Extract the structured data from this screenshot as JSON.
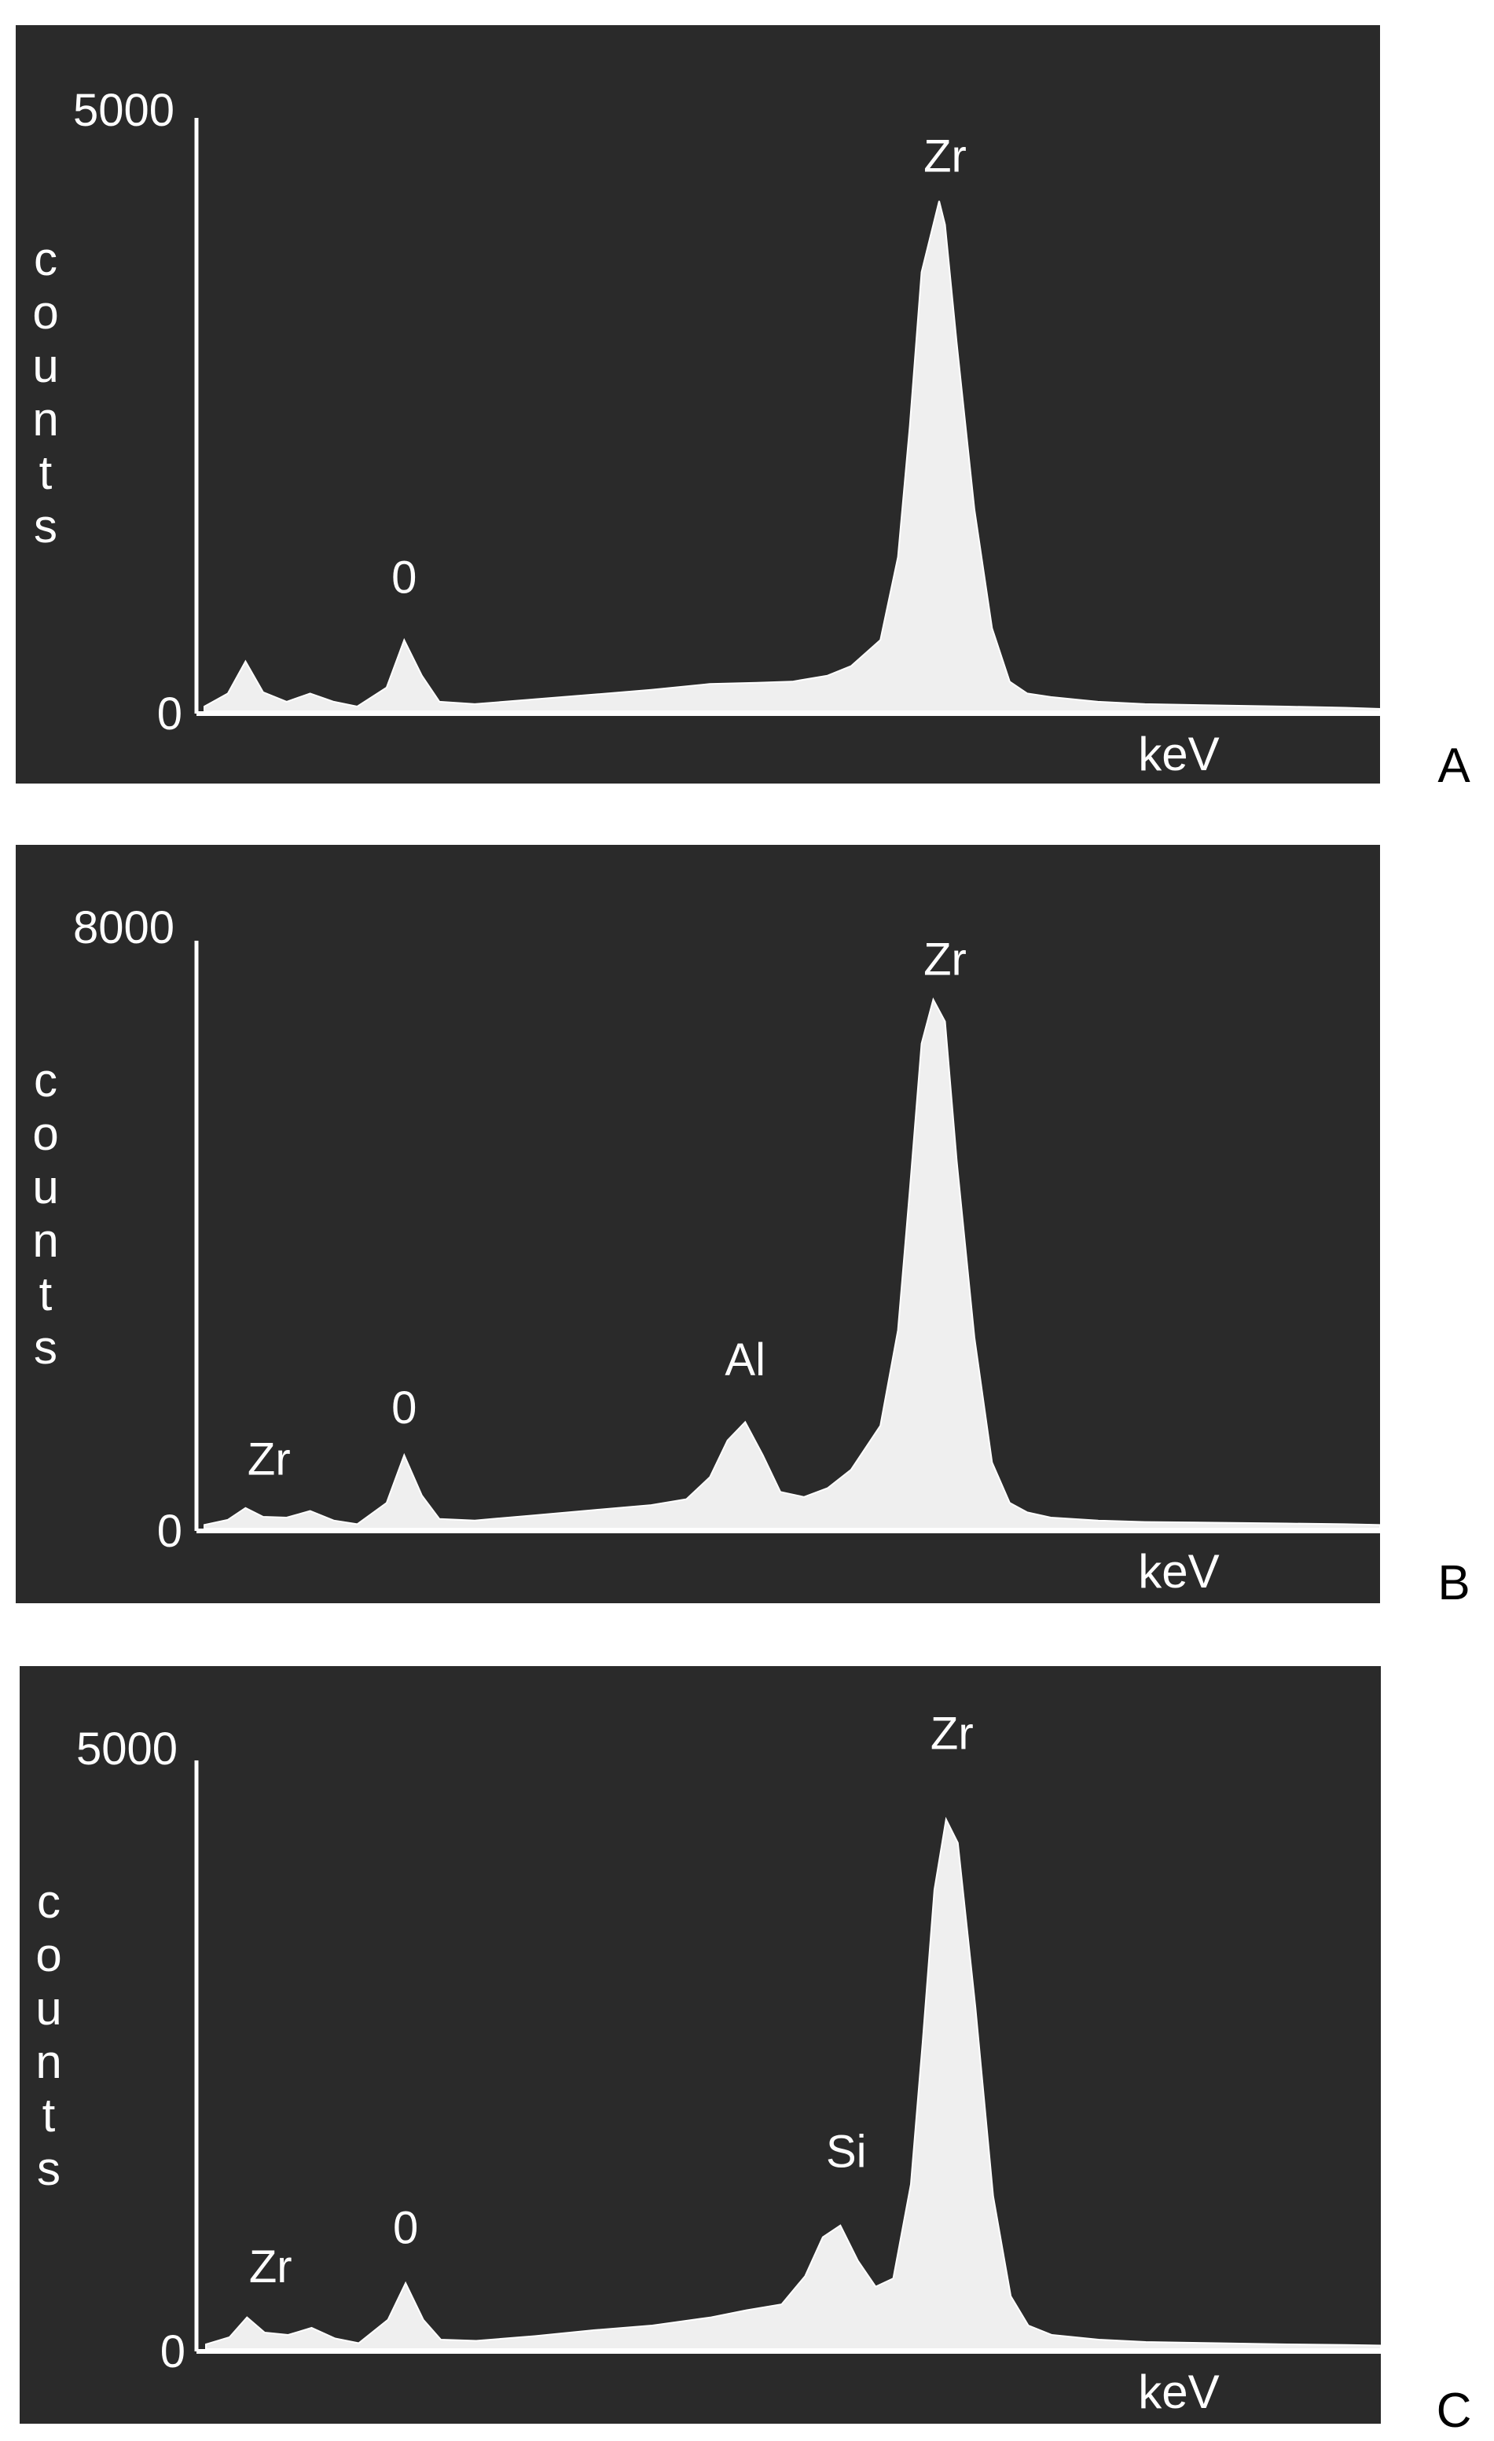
{
  "chart_data": [
    {
      "type": "area",
      "panel": "A",
      "ylabel": "counts",
      "xlabel": "keV",
      "yticks": [
        "5000",
        "0"
      ],
      "ylim": [
        0,
        5000
      ],
      "xlim": [
        0,
        1
      ],
      "peak_labels": [
        {
          "text": "0",
          "x": 0.17,
          "y": 850
        },
        {
          "text": "Zr",
          "x": 0.63,
          "y": 4400
        }
      ],
      "x": [
        0.0,
        0.02,
        0.035,
        0.05,
        0.07,
        0.09,
        0.11,
        0.13,
        0.155,
        0.17,
        0.185,
        0.2,
        0.23,
        0.28,
        0.33,
        0.38,
        0.43,
        0.47,
        0.5,
        0.53,
        0.55,
        0.575,
        0.59,
        0.6,
        0.61,
        0.625,
        0.63,
        0.64,
        0.655,
        0.67,
        0.685,
        0.7,
        0.72,
        0.76,
        0.8,
        0.86,
        0.92,
        0.97,
        1.0
      ],
      "values": [
        40,
        150,
        420,
        160,
        80,
        150,
        80,
        40,
        200,
        600,
        300,
        80,
        60,
        100,
        140,
        180,
        230,
        240,
        250,
        300,
        380,
        600,
        1300,
        2400,
        3700,
        4300,
        4100,
        3100,
        1700,
        700,
        250,
        150,
        120,
        80,
        60,
        50,
        40,
        30,
        20
      ]
    },
    {
      "type": "area",
      "panel": "B",
      "ylabel": "counts",
      "xlabel": "keV",
      "yticks": [
        "8000",
        "0"
      ],
      "ylim": [
        0,
        8000
      ],
      "xlim": [
        0,
        1
      ],
      "peak_labels": [
        {
          "text": "Zr",
          "x": 0.055,
          "y": 500
        },
        {
          "text": "0",
          "x": 0.17,
          "y": 1200
        },
        {
          "text": "Al",
          "x": 0.46,
          "y": 1850
        },
        {
          "text": "Zr",
          "x": 0.63,
          "y": 7300
        }
      ],
      "x": [
        0.0,
        0.02,
        0.035,
        0.05,
        0.07,
        0.09,
        0.11,
        0.13,
        0.155,
        0.17,
        0.185,
        0.2,
        0.23,
        0.28,
        0.33,
        0.38,
        0.41,
        0.43,
        0.445,
        0.46,
        0.475,
        0.49,
        0.51,
        0.53,
        0.55,
        0.575,
        0.59,
        0.6,
        0.61,
        0.62,
        0.63,
        0.64,
        0.655,
        0.67,
        0.685,
        0.7,
        0.72,
        0.76,
        0.8,
        0.86,
        0.92,
        0.97,
        1.0
      ],
      "values": [
        50,
        120,
        280,
        160,
        150,
        240,
        110,
        60,
        350,
        1000,
        450,
        130,
        110,
        180,
        250,
        320,
        400,
        700,
        1200,
        1450,
        1000,
        500,
        430,
        550,
        800,
        1400,
        2700,
        4600,
        6600,
        7200,
        6900,
        5000,
        2600,
        900,
        350,
        220,
        150,
        110,
        90,
        80,
        70,
        60,
        50
      ]
    },
    {
      "type": "area",
      "panel": "C",
      "ylabel": "counts",
      "xlabel": "keV",
      "yticks": [
        "5000",
        "0"
      ],
      "ylim": [
        0,
        5000
      ],
      "xlim": [
        0,
        1
      ],
      "peak_labels": [
        {
          "text": "Zr",
          "x": 0.055,
          "y": 420
        },
        {
          "text": "0",
          "x": 0.17,
          "y": 750
        },
        {
          "text": "Si",
          "x": 0.545,
          "y": 1400
        },
        {
          "text": "Zr",
          "x": 0.635,
          "y": 4950
        }
      ],
      "x": [
        0.0,
        0.02,
        0.035,
        0.05,
        0.07,
        0.09,
        0.11,
        0.13,
        0.155,
        0.17,
        0.185,
        0.2,
        0.23,
        0.28,
        0.33,
        0.38,
        0.43,
        0.46,
        0.49,
        0.51,
        0.525,
        0.54,
        0.555,
        0.57,
        0.585,
        0.6,
        0.61,
        0.62,
        0.63,
        0.64,
        0.655,
        0.67,
        0.685,
        0.7,
        0.72,
        0.76,
        0.8,
        0.86,
        0.92,
        0.97,
        1.0
      ],
      "values": [
        40,
        100,
        270,
        140,
        120,
        180,
        90,
        50,
        250,
        560,
        250,
        80,
        70,
        110,
        160,
        200,
        270,
        330,
        380,
        620,
        950,
        1050,
        750,
        530,
        600,
        1400,
        2600,
        3900,
        4500,
        4300,
        2900,
        1300,
        450,
        200,
        120,
        80,
        60,
        50,
        40,
        35,
        30
      ]
    }
  ]
}
